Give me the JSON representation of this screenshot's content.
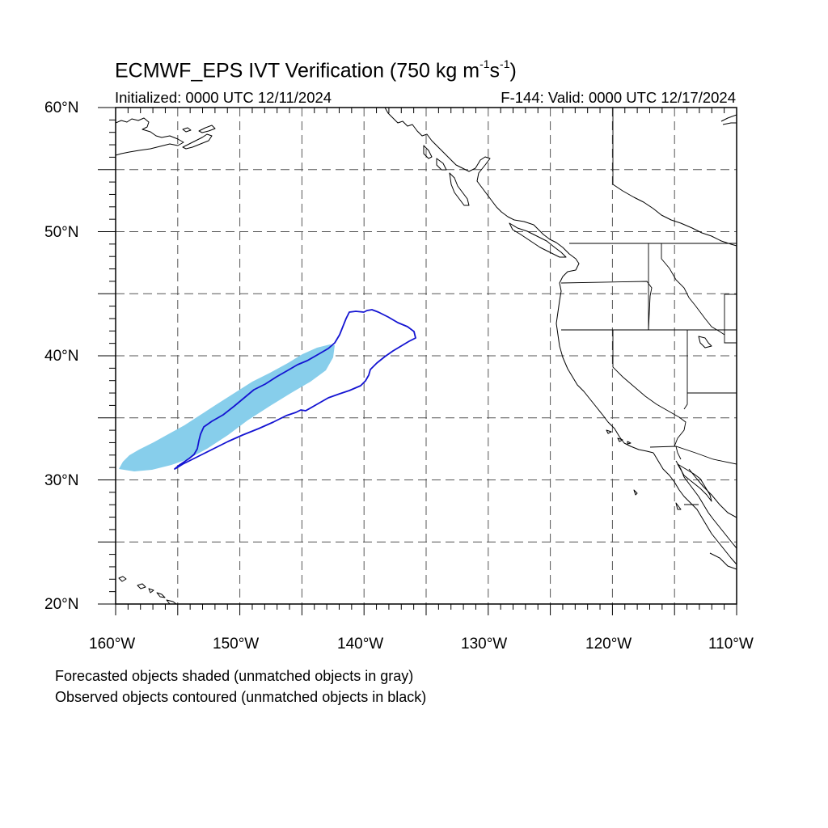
{
  "title": {
    "main": "ECMWF_EPS IVT Verification (750 kg m",
    "exp1": "-1",
    "mid": "s",
    "exp2": "-1",
    "end": ")"
  },
  "subtitle": {
    "initialized": "Initialized: 0000 UTC 12/11/2024",
    "valid": "F-144: Valid: 0000 UTC 12/17/2024"
  },
  "notes": {
    "line1": "Forecasted objects shaded (unmatched objects in gray)",
    "line2": "Observed objects contoured (unmatched objects in black)"
  },
  "axes": {
    "lat_labels": [
      "60°N",
      "50°N",
      "40°N",
      "30°N",
      "20°N"
    ],
    "lon_labels": [
      "160°W",
      "150°W",
      "140°W",
      "130°W",
      "120°W",
      "110°W"
    ],
    "lat_range": [
      20,
      60
    ],
    "lon_range": [
      -160,
      -110
    ]
  },
  "colors": {
    "forecast_fill": "#87ceeb",
    "observed_contour": "#1414d2",
    "coastline": "#000000",
    "grid": "#555555"
  }
}
